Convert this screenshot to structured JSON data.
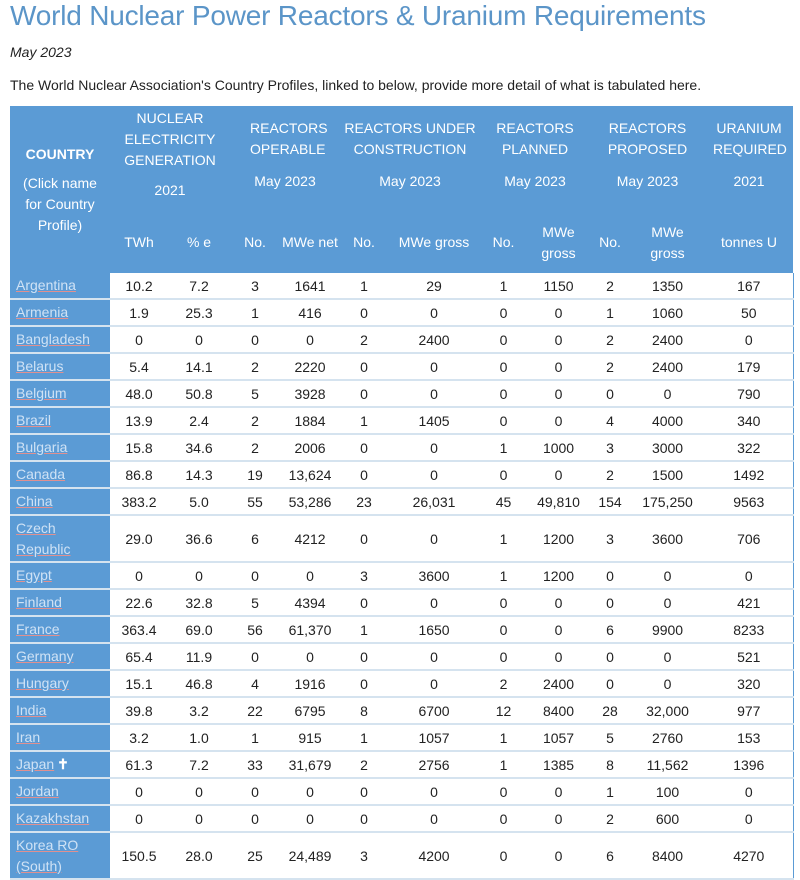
{
  "page": {
    "title": "World Nuclear Power Reactors & Uranium Requirements",
    "date": "May 2023",
    "intro": "The World Nuclear Association's Country Profiles, linked to below, provide more detail of what is tabulated here."
  },
  "colors": {
    "header_bg": "#5b9bd5",
    "title": "#5b95c8",
    "link": "#cfe2f5"
  },
  "table": {
    "country_header": {
      "title": "COUNTRY",
      "sub": "(Click name for Country Profile)"
    },
    "groups": [
      {
        "title": "NUCLEAR ELECTRICITY GENERATION",
        "date": "2021"
      },
      {
        "title": "REACTORS OPERABLE",
        "date": "May 2023"
      },
      {
        "title": "REACTORS UNDER CONSTRUCTION",
        "date": "May 2023"
      },
      {
        "title": "REACTORS PLANNED",
        "date": "May 2023"
      },
      {
        "title": "REACTORS PROPOSED",
        "date": "May 2023"
      },
      {
        "title": "URANIUM REQUIRED",
        "date": "2021"
      }
    ],
    "subheaders": [
      "TWh",
      "% e",
      "No.",
      "MWe net",
      "No.",
      "MWe gross",
      "No.",
      "MWe gross",
      "No.",
      "MWe gross",
      "tonnes U"
    ],
    "rows": [
      {
        "country": "Argentina",
        "values": [
          "10.2",
          "7.2",
          "3",
          "1641",
          "1",
          "29",
          "1",
          "1150",
          "2",
          "1350",
          "167"
        ]
      },
      {
        "country": "Armenia",
        "values": [
          "1.9",
          "25.3",
          "1",
          "416",
          "0",
          "0",
          "0",
          "0",
          "1",
          "1060",
          "50"
        ]
      },
      {
        "country": "Bangladesh",
        "values": [
          "0",
          "0",
          "0",
          "0",
          "2",
          "2400",
          "0",
          "0",
          "2",
          "2400",
          "0"
        ]
      },
      {
        "country": "Belarus",
        "values": [
          "5.4",
          "14.1",
          "2",
          "2220",
          "0",
          "0",
          "0",
          "0",
          "2",
          "2400",
          "179"
        ]
      },
      {
        "country": "Belgium",
        "values": [
          "48.0",
          "50.8",
          "5",
          "3928",
          "0",
          "0",
          "0",
          "0",
          "0",
          "0",
          "790"
        ]
      },
      {
        "country": "Brazil",
        "values": [
          "13.9",
          "2.4",
          "2",
          "1884",
          "1",
          "1405",
          "0",
          "0",
          "4",
          "4000",
          "340"
        ]
      },
      {
        "country": "Bulgaria",
        "values": [
          "15.8",
          "34.6",
          "2",
          "2006",
          "0",
          "0",
          "1",
          "1000",
          "3",
          "3000",
          "322"
        ]
      },
      {
        "country": "Canada",
        "values": [
          "86.8",
          "14.3",
          "19",
          "13,624",
          "0",
          "0",
          "0",
          "0",
          "2",
          "1500",
          "1492"
        ]
      },
      {
        "country": "China",
        "values": [
          "383.2",
          "5.0",
          "55",
          "53,286",
          "23",
          "26,031",
          "45",
          "49,810",
          "154",
          "175,250",
          "9563"
        ]
      },
      {
        "country": "Czech Republic",
        "values": [
          "29.0",
          "36.6",
          "6",
          "4212",
          "0",
          "0",
          "1",
          "1200",
          "3",
          "3600",
          "706"
        ],
        "tall": true
      },
      {
        "country": "Egypt",
        "values": [
          "0",
          "0",
          "0",
          "0",
          "3",
          "3600",
          "1",
          "1200",
          "0",
          "0",
          "0"
        ]
      },
      {
        "country": "Finland",
        "values": [
          "22.6",
          "32.8",
          "5",
          "4394",
          "0",
          "0",
          "0",
          "0",
          "0",
          "0",
          "421"
        ]
      },
      {
        "country": "France",
        "values": [
          "363.4",
          "69.0",
          "56",
          "61,370",
          "1",
          "1650",
          "0",
          "0",
          "6",
          "9900",
          "8233"
        ]
      },
      {
        "country": "Germany",
        "values": [
          "65.4",
          "11.9",
          "0",
          "0",
          "0",
          "0",
          "0",
          "0",
          "0",
          "0",
          "521"
        ]
      },
      {
        "country": "Hungary",
        "values": [
          "15.1",
          "46.8",
          "4",
          "1916",
          "0",
          "0",
          "2",
          "2400",
          "0",
          "0",
          "320"
        ]
      },
      {
        "country": "India",
        "values": [
          "39.8",
          "3.2",
          "22",
          "6795",
          "8",
          "6700",
          "12",
          "8400",
          "28",
          "32,000",
          "977"
        ]
      },
      {
        "country": "Iran",
        "values": [
          "3.2",
          "1.0",
          "1",
          "915",
          "1",
          "1057",
          "1",
          "1057",
          "5",
          "2760",
          "153"
        ]
      },
      {
        "country": "Japan",
        "mark": "✝",
        "values": [
          "61.3",
          "7.2",
          "33",
          "31,679",
          "2",
          "2756",
          "1",
          "1385",
          "8",
          "11,562",
          "1396"
        ]
      },
      {
        "country": "Jordan",
        "values": [
          "0",
          "0",
          "0",
          "0",
          "0",
          "0",
          "0",
          "0",
          "1",
          "100",
          "0"
        ]
      },
      {
        "country": "Kazakhstan",
        "values": [
          "0",
          "0",
          "0",
          "0",
          "0",
          "0",
          "0",
          "0",
          "2",
          "600",
          "0"
        ]
      },
      {
        "country": "Korea RO (South)",
        "values": [
          "150.5",
          "28.0",
          "25",
          "24,489",
          "3",
          "4200",
          "0",
          "0",
          "6",
          "8400",
          "4270"
        ],
        "tall": true
      }
    ]
  }
}
